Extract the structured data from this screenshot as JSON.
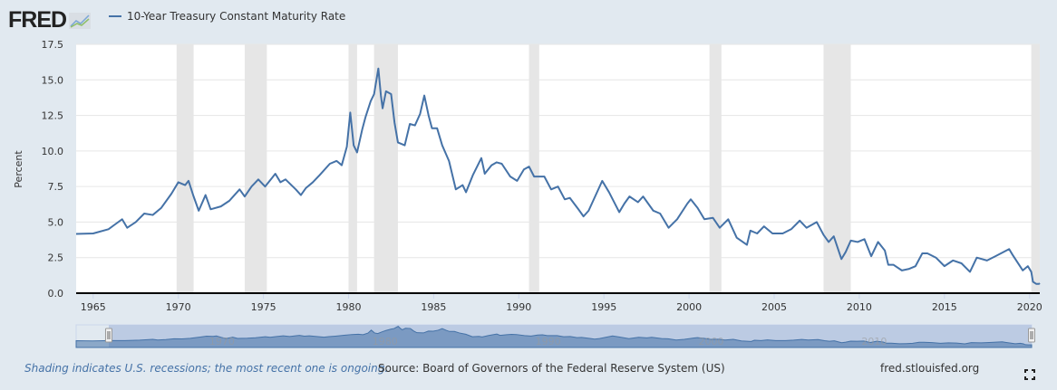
{
  "header": {
    "logo": "FRED",
    "legend_label": "10-Year Treasury Constant Maturity Rate"
  },
  "footer": {
    "note": "Shading indicates U.S. recessions; the most recent one is ongoing.",
    "source": "Source: Board of Governors of the Federal Reserve System (US)",
    "site": "fred.stlouisfed.org"
  },
  "colors": {
    "line": "#4572a7",
    "recession": "#e6e6e6",
    "background": "#e1e9f0"
  },
  "chart_data": {
    "type": "line",
    "title": "",
    "ylabel": "Percent",
    "xlabel": "",
    "xlim": [
      1964.0,
      2020.6
    ],
    "ylim": [
      0,
      17.5
    ],
    "yticks": [
      "0.0",
      "2.5",
      "5.0",
      "7.5",
      "10.0",
      "12.5",
      "15.0",
      "17.5"
    ],
    "xticks": [
      "1965",
      "1970",
      "1975",
      "1980",
      "1985",
      "1990",
      "1995",
      "2000",
      "2005",
      "2010",
      "2015",
      "2020"
    ],
    "navigator_ticks": [
      "1970",
      "1980",
      "1990",
      "2000",
      "2010"
    ],
    "navigator_range": [
      1962,
      2020.6
    ],
    "grid": true,
    "legend": "top-left",
    "recessions": [
      [
        1969.9,
        1970.9
      ],
      [
        1973.9,
        1975.2
      ],
      [
        1980.0,
        1980.5
      ],
      [
        1981.5,
        1982.9
      ],
      [
        1990.6,
        1991.2
      ],
      [
        2001.2,
        2001.9
      ],
      [
        2007.9,
        2009.5
      ],
      [
        2020.1,
        2020.6
      ]
    ],
    "series": [
      {
        "name": "10-Year Treasury Constant Maturity Rate",
        "points": [
          [
            1962.0,
            4.08
          ],
          [
            1963.0,
            3.9
          ],
          [
            1964.0,
            4.17
          ],
          [
            1965.0,
            4.2
          ],
          [
            1965.9,
            4.5
          ],
          [
            1966.7,
            5.2
          ],
          [
            1967.0,
            4.6
          ],
          [
            1967.5,
            5.0
          ],
          [
            1968.0,
            5.6
          ],
          [
            1968.5,
            5.5
          ],
          [
            1969.0,
            6.0
          ],
          [
            1969.6,
            7.0
          ],
          [
            1970.0,
            7.8
          ],
          [
            1970.4,
            7.6
          ],
          [
            1970.6,
            7.9
          ],
          [
            1970.9,
            6.8
          ],
          [
            1971.2,
            5.8
          ],
          [
            1971.6,
            6.9
          ],
          [
            1971.9,
            5.9
          ],
          [
            1972.5,
            6.1
          ],
          [
            1973.0,
            6.5
          ],
          [
            1973.6,
            7.3
          ],
          [
            1973.9,
            6.8
          ],
          [
            1974.3,
            7.5
          ],
          [
            1974.7,
            8.0
          ],
          [
            1975.1,
            7.5
          ],
          [
            1975.5,
            8.1
          ],
          [
            1975.7,
            8.4
          ],
          [
            1976.0,
            7.8
          ],
          [
            1976.3,
            8.0
          ],
          [
            1976.9,
            7.3
          ],
          [
            1977.2,
            6.9
          ],
          [
            1977.5,
            7.4
          ],
          [
            1977.9,
            7.8
          ],
          [
            1978.3,
            8.3
          ],
          [
            1978.9,
            9.1
          ],
          [
            1979.3,
            9.3
          ],
          [
            1979.6,
            9.0
          ],
          [
            1979.9,
            10.3
          ],
          [
            1980.1,
            12.7
          ],
          [
            1980.3,
            10.4
          ],
          [
            1980.5,
            9.9
          ],
          [
            1980.8,
            11.5
          ],
          [
            1981.0,
            12.4
          ],
          [
            1981.3,
            13.5
          ],
          [
            1981.5,
            14.0
          ],
          [
            1981.75,
            15.8
          ],
          [
            1981.9,
            13.9
          ],
          [
            1982.0,
            13.0
          ],
          [
            1982.2,
            14.2
          ],
          [
            1982.5,
            14.0
          ],
          [
            1982.7,
            12.0
          ],
          [
            1982.9,
            10.6
          ],
          [
            1983.3,
            10.4
          ],
          [
            1983.6,
            11.9
          ],
          [
            1983.9,
            11.8
          ],
          [
            1984.2,
            12.6
          ],
          [
            1984.45,
            13.9
          ],
          [
            1984.7,
            12.5
          ],
          [
            1984.9,
            11.6
          ],
          [
            1985.2,
            11.6
          ],
          [
            1985.5,
            10.4
          ],
          [
            1985.9,
            9.3
          ],
          [
            1986.3,
            7.3
          ],
          [
            1986.7,
            7.6
          ],
          [
            1986.9,
            7.1
          ],
          [
            1987.3,
            8.3
          ],
          [
            1987.8,
            9.5
          ],
          [
            1988.0,
            8.4
          ],
          [
            1988.4,
            9.0
          ],
          [
            1988.7,
            9.2
          ],
          [
            1989.0,
            9.1
          ],
          [
            1989.5,
            8.2
          ],
          [
            1989.9,
            7.9
          ],
          [
            1990.3,
            8.7
          ],
          [
            1990.6,
            8.9
          ],
          [
            1990.9,
            8.2
          ],
          [
            1991.5,
            8.2
          ],
          [
            1991.9,
            7.3
          ],
          [
            1992.3,
            7.5
          ],
          [
            1992.7,
            6.6
          ],
          [
            1993.0,
            6.7
          ],
          [
            1993.5,
            5.9
          ],
          [
            1993.8,
            5.4
          ],
          [
            1994.1,
            5.8
          ],
          [
            1994.9,
            7.9
          ],
          [
            1995.3,
            7.1
          ],
          [
            1995.9,
            5.7
          ],
          [
            1996.2,
            6.3
          ],
          [
            1996.5,
            6.8
          ],
          [
            1997.0,
            6.4
          ],
          [
            1997.3,
            6.8
          ],
          [
            1997.9,
            5.8
          ],
          [
            1998.3,
            5.6
          ],
          [
            1998.8,
            4.6
          ],
          [
            1999.3,
            5.2
          ],
          [
            1999.9,
            6.3
          ],
          [
            2000.1,
            6.6
          ],
          [
            2000.5,
            6.0
          ],
          [
            2000.9,
            5.2
          ],
          [
            2001.4,
            5.3
          ],
          [
            2001.8,
            4.6
          ],
          [
            2002.3,
            5.2
          ],
          [
            2002.8,
            3.9
          ],
          [
            2003.4,
            3.4
          ],
          [
            2003.6,
            4.4
          ],
          [
            2004.0,
            4.2
          ],
          [
            2004.4,
            4.7
          ],
          [
            2004.9,
            4.2
          ],
          [
            2005.5,
            4.2
          ],
          [
            2006.0,
            4.5
          ],
          [
            2006.5,
            5.1
          ],
          [
            2006.9,
            4.6
          ],
          [
            2007.5,
            5.0
          ],
          [
            2007.9,
            4.1
          ],
          [
            2008.2,
            3.6
          ],
          [
            2008.5,
            4.0
          ],
          [
            2008.95,
            2.4
          ],
          [
            2009.2,
            2.9
          ],
          [
            2009.5,
            3.7
          ],
          [
            2009.9,
            3.6
          ],
          [
            2010.3,
            3.8
          ],
          [
            2010.7,
            2.6
          ],
          [
            2011.1,
            3.6
          ],
          [
            2011.5,
            3.0
          ],
          [
            2011.7,
            2.0
          ],
          [
            2012.0,
            2.0
          ],
          [
            2012.5,
            1.6
          ],
          [
            2012.9,
            1.7
          ],
          [
            2013.3,
            1.9
          ],
          [
            2013.7,
            2.8
          ],
          [
            2014.0,
            2.8
          ],
          [
            2014.5,
            2.5
          ],
          [
            2015.0,
            1.9
          ],
          [
            2015.5,
            2.3
          ],
          [
            2016.0,
            2.1
          ],
          [
            2016.5,
            1.5
          ],
          [
            2016.9,
            2.5
          ],
          [
            2017.5,
            2.3
          ],
          [
            2018.0,
            2.6
          ],
          [
            2018.8,
            3.1
          ],
          [
            2019.0,
            2.7
          ],
          [
            2019.6,
            1.6
          ],
          [
            2019.9,
            1.9
          ],
          [
            2020.1,
            1.5
          ],
          [
            2020.2,
            0.8
          ],
          [
            2020.4,
            0.65
          ],
          [
            2020.55,
            0.65
          ],
          [
            2020.6,
            0.7
          ]
        ]
      }
    ]
  }
}
